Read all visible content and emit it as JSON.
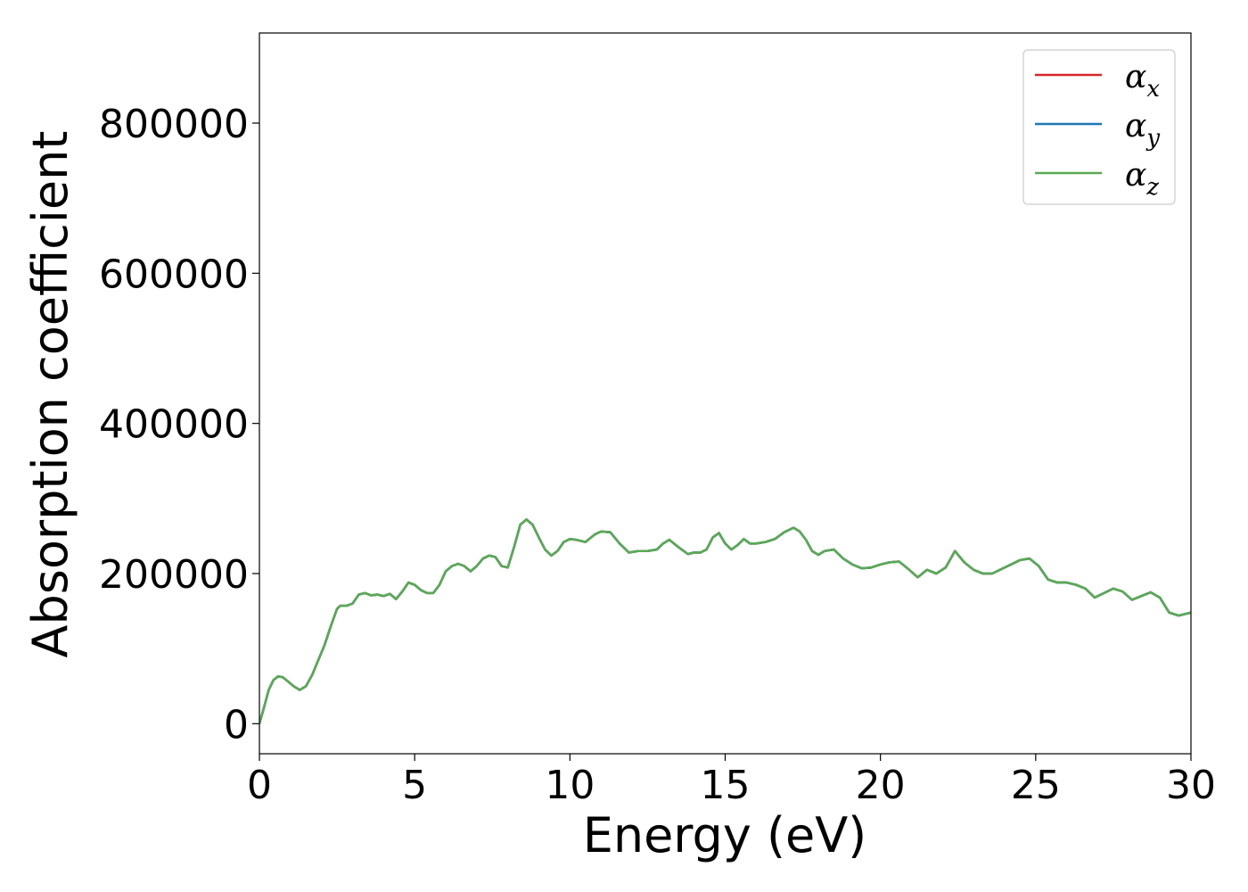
{
  "chart_data": {
    "type": "line",
    "title": "",
    "xlabel": "Energy (eV)",
    "ylabel": "Absorption coefficient",
    "xlim": [
      0,
      30
    ],
    "ylim": [
      -40000,
      920000
    ],
    "xticks": [
      0,
      5,
      10,
      15,
      20,
      25,
      30
    ],
    "yticks": [
      0,
      200000,
      400000,
      600000,
      800000
    ],
    "grid": false,
    "legend_position": "top-right",
    "series": [
      {
        "name": "αx",
        "symbol": "α",
        "subscript": "x",
        "color": "#d62728",
        "x": [
          0,
          0.15,
          0.3,
          0.45,
          0.6,
          0.75,
          0.9,
          1.1,
          1.3,
          1.5,
          1.7,
          1.9,
          2.1,
          2.3,
          2.5,
          2.6,
          2.8,
          3.0,
          3.2,
          3.4,
          3.6,
          3.8,
          4.0,
          4.2,
          4.4,
          4.6,
          4.8,
          5.0,
          5.2,
          5.4,
          5.6,
          5.8,
          6.0,
          6.2,
          6.4,
          6.6,
          6.8,
          7.0,
          7.2,
          7.4,
          7.6,
          7.8,
          8.0,
          8.2,
          8.4,
          8.6,
          8.8,
          9.0,
          9.2,
          9.4,
          9.6,
          9.8,
          10.0,
          10.2,
          10.5,
          10.8,
          11.0,
          11.3,
          11.6,
          11.9,
          12.2,
          12.5,
          12.8,
          13.0,
          13.2,
          13.5,
          13.8,
          14.0,
          14.2,
          14.4,
          14.6,
          14.8,
          15.0,
          15.2,
          15.4,
          15.6,
          15.8,
          16.0,
          16.3,
          16.6,
          16.9,
          17.2,
          17.4,
          17.6,
          17.8,
          18.0,
          18.2,
          18.5,
          18.8,
          19.1,
          19.4,
          19.7,
          20.0,
          20.3,
          20.6,
          20.9,
          21.2,
          21.5,
          21.8,
          22.1,
          22.4,
          22.7,
          23.0,
          23.3,
          23.6,
          23.9,
          24.2,
          24.5,
          24.8,
          25.1,
          25.4,
          25.7,
          26.0,
          26.3,
          26.6,
          26.9,
          27.2,
          27.5,
          27.8,
          28.1,
          28.4,
          28.7,
          29.0,
          29.3,
          29.6,
          30.0
        ],
        "y": [
          0,
          22000,
          45000,
          58000,
          63000,
          62000,
          57000,
          50000,
          45000,
          50000,
          65000,
          85000,
          105000,
          130000,
          153000,
          157000,
          157000,
          160000,
          172000,
          174000,
          171000,
          172000,
          170000,
          173000,
          166000,
          176000,
          188000,
          185000,
          178000,
          174000,
          174000,
          185000,
          203000,
          210000,
          213000,
          210000,
          203000,
          210000,
          220000,
          224000,
          222000,
          210000,
          208000,
          235000,
          265000,
          272000,
          265000,
          248000,
          232000,
          224000,
          230000,
          242000,
          246000,
          245000,
          242000,
          252000,
          256000,
          255000,
          240000,
          228000,
          230000,
          230000,
          232000,
          240000,
          245000,
          235000,
          226000,
          228000,
          228000,
          232000,
          248000,
          254000,
          240000,
          232000,
          238000,
          246000,
          240000,
          240000,
          242000,
          246000,
          255000,
          261000,
          256000,
          245000,
          230000,
          225000,
          230000,
          232000,
          220000,
          212000,
          207000,
          208000,
          212000,
          215000,
          216000,
          206000,
          195000,
          205000,
          200000,
          208000,
          230000,
          215000,
          205000,
          200000,
          200000,
          206000,
          212000,
          218000,
          220000,
          210000,
          192000,
          188000,
          188000,
          185000,
          180000,
          168000,
          174000,
          180000,
          176000,
          165000,
          170000,
          175000,
          168000,
          148000,
          144000,
          148000
        ]
      },
      {
        "name": "αy",
        "symbol": "α",
        "subscript": "y",
        "color": "#1f77b4",
        "x": [
          0,
          0.15,
          0.3,
          0.45,
          0.6,
          0.75,
          0.9,
          1.1,
          1.3,
          1.5,
          1.7,
          1.9,
          2.1,
          2.3,
          2.5,
          2.6,
          2.8,
          3.0,
          3.2,
          3.4,
          3.6,
          3.8,
          4.0,
          4.2,
          4.4,
          4.6,
          4.8,
          5.0,
          5.2,
          5.4,
          5.6,
          5.8,
          6.0,
          6.2,
          6.4,
          6.6,
          6.8,
          7.0,
          7.2,
          7.4,
          7.6,
          7.8,
          8.0,
          8.2,
          8.4,
          8.6,
          8.8,
          9.0,
          9.2,
          9.4,
          9.6,
          9.8,
          10.0,
          10.2,
          10.5,
          10.8,
          11.0,
          11.3,
          11.6,
          11.9,
          12.2,
          12.5,
          12.8,
          13.0,
          13.2,
          13.5,
          13.8,
          14.0,
          14.2,
          14.4,
          14.6,
          14.8,
          15.0,
          15.2,
          15.4,
          15.6,
          15.8,
          16.0,
          16.3,
          16.6,
          16.9,
          17.2,
          17.4,
          17.6,
          17.8,
          18.0,
          18.2,
          18.5,
          18.8,
          19.1,
          19.4,
          19.7,
          20.0,
          20.3,
          20.6,
          20.9,
          21.2,
          21.5,
          21.8,
          22.1,
          22.4,
          22.7,
          23.0,
          23.3,
          23.6,
          23.9,
          24.2,
          24.5,
          24.8,
          25.1,
          25.4,
          25.7,
          26.0,
          26.3,
          26.6,
          26.9,
          27.2,
          27.5,
          27.8,
          28.1,
          28.4,
          28.7,
          29.0,
          29.3,
          29.6,
          30.0
        ],
        "y": [
          0,
          22000,
          45000,
          58000,
          63000,
          62000,
          57000,
          50000,
          45000,
          50000,
          65000,
          85000,
          105000,
          130000,
          153000,
          157000,
          157000,
          160000,
          172000,
          174000,
          171000,
          172000,
          170000,
          173000,
          166000,
          176000,
          188000,
          185000,
          178000,
          174000,
          174000,
          185000,
          203000,
          210000,
          213000,
          210000,
          203000,
          210000,
          220000,
          224000,
          222000,
          210000,
          208000,
          235000,
          265000,
          272000,
          265000,
          248000,
          232000,
          224000,
          230000,
          242000,
          246000,
          245000,
          242000,
          252000,
          256000,
          255000,
          240000,
          228000,
          230000,
          230000,
          232000,
          240000,
          245000,
          235000,
          226000,
          228000,
          228000,
          232000,
          248000,
          254000,
          240000,
          232000,
          238000,
          246000,
          240000,
          240000,
          242000,
          246000,
          255000,
          261000,
          256000,
          245000,
          230000,
          225000,
          230000,
          232000,
          220000,
          212000,
          207000,
          208000,
          212000,
          215000,
          216000,
          206000,
          195000,
          205000,
          200000,
          208000,
          230000,
          215000,
          205000,
          200000,
          200000,
          206000,
          212000,
          218000,
          220000,
          210000,
          192000,
          188000,
          188000,
          185000,
          180000,
          168000,
          174000,
          180000,
          176000,
          165000,
          170000,
          175000,
          168000,
          148000,
          144000,
          148000
        ]
      },
      {
        "name": "αz",
        "symbol": "α",
        "subscript": "z",
        "color": "#5aaa55",
        "x": [
          0,
          0.15,
          0.3,
          0.45,
          0.6,
          0.75,
          0.9,
          1.1,
          1.3,
          1.5,
          1.7,
          1.9,
          2.1,
          2.3,
          2.5,
          2.6,
          2.8,
          3.0,
          3.2,
          3.4,
          3.6,
          3.8,
          4.0,
          4.2,
          4.4,
          4.6,
          4.8,
          5.0,
          5.2,
          5.4,
          5.6,
          5.8,
          6.0,
          6.2,
          6.4,
          6.6,
          6.8,
          7.0,
          7.2,
          7.4,
          7.6,
          7.8,
          8.0,
          8.2,
          8.4,
          8.6,
          8.8,
          9.0,
          9.2,
          9.4,
          9.6,
          9.8,
          10.0,
          10.2,
          10.5,
          10.8,
          11.0,
          11.3,
          11.6,
          11.9,
          12.2,
          12.5,
          12.8,
          13.0,
          13.2,
          13.5,
          13.8,
          14.0,
          14.2,
          14.4,
          14.6,
          14.8,
          15.0,
          15.2,
          15.4,
          15.6,
          15.8,
          16.0,
          16.3,
          16.6,
          16.9,
          17.2,
          17.4,
          17.6,
          17.8,
          18.0,
          18.2,
          18.5,
          18.8,
          19.1,
          19.4,
          19.7,
          20.0,
          20.3,
          20.6,
          20.9,
          21.2,
          21.5,
          21.8,
          22.1,
          22.4,
          22.7,
          23.0,
          23.3,
          23.6,
          23.9,
          24.2,
          24.5,
          24.8,
          25.1,
          25.4,
          25.7,
          26.0,
          26.3,
          26.6,
          26.9,
          27.2,
          27.5,
          27.8,
          28.1,
          28.4,
          28.7,
          29.0,
          29.3,
          29.6,
          30.0
        ],
        "y": [
          0,
          22000,
          45000,
          58000,
          63000,
          62000,
          57000,
          50000,
          45000,
          50000,
          65000,
          85000,
          105000,
          130000,
          153000,
          157000,
          157000,
          160000,
          172000,
          174000,
          171000,
          172000,
          170000,
          173000,
          166000,
          176000,
          188000,
          185000,
          178000,
          174000,
          174000,
          185000,
          203000,
          210000,
          213000,
          210000,
          203000,
          210000,
          220000,
          224000,
          222000,
          210000,
          208000,
          235000,
          265000,
          272000,
          265000,
          248000,
          232000,
          224000,
          230000,
          242000,
          246000,
          245000,
          242000,
          252000,
          256000,
          255000,
          240000,
          228000,
          230000,
          230000,
          232000,
          240000,
          245000,
          235000,
          226000,
          228000,
          228000,
          232000,
          248000,
          254000,
          240000,
          232000,
          238000,
          246000,
          240000,
          240000,
          242000,
          246000,
          255000,
          261000,
          256000,
          245000,
          230000,
          225000,
          230000,
          232000,
          220000,
          212000,
          207000,
          208000,
          212000,
          215000,
          216000,
          206000,
          195000,
          205000,
          200000,
          208000,
          230000,
          215000,
          205000,
          200000,
          200000,
          206000,
          212000,
          218000,
          220000,
          210000,
          192000,
          188000,
          188000,
          185000,
          180000,
          168000,
          174000,
          180000,
          176000,
          165000,
          170000,
          175000,
          168000,
          148000,
          144000,
          148000
        ]
      }
    ]
  }
}
